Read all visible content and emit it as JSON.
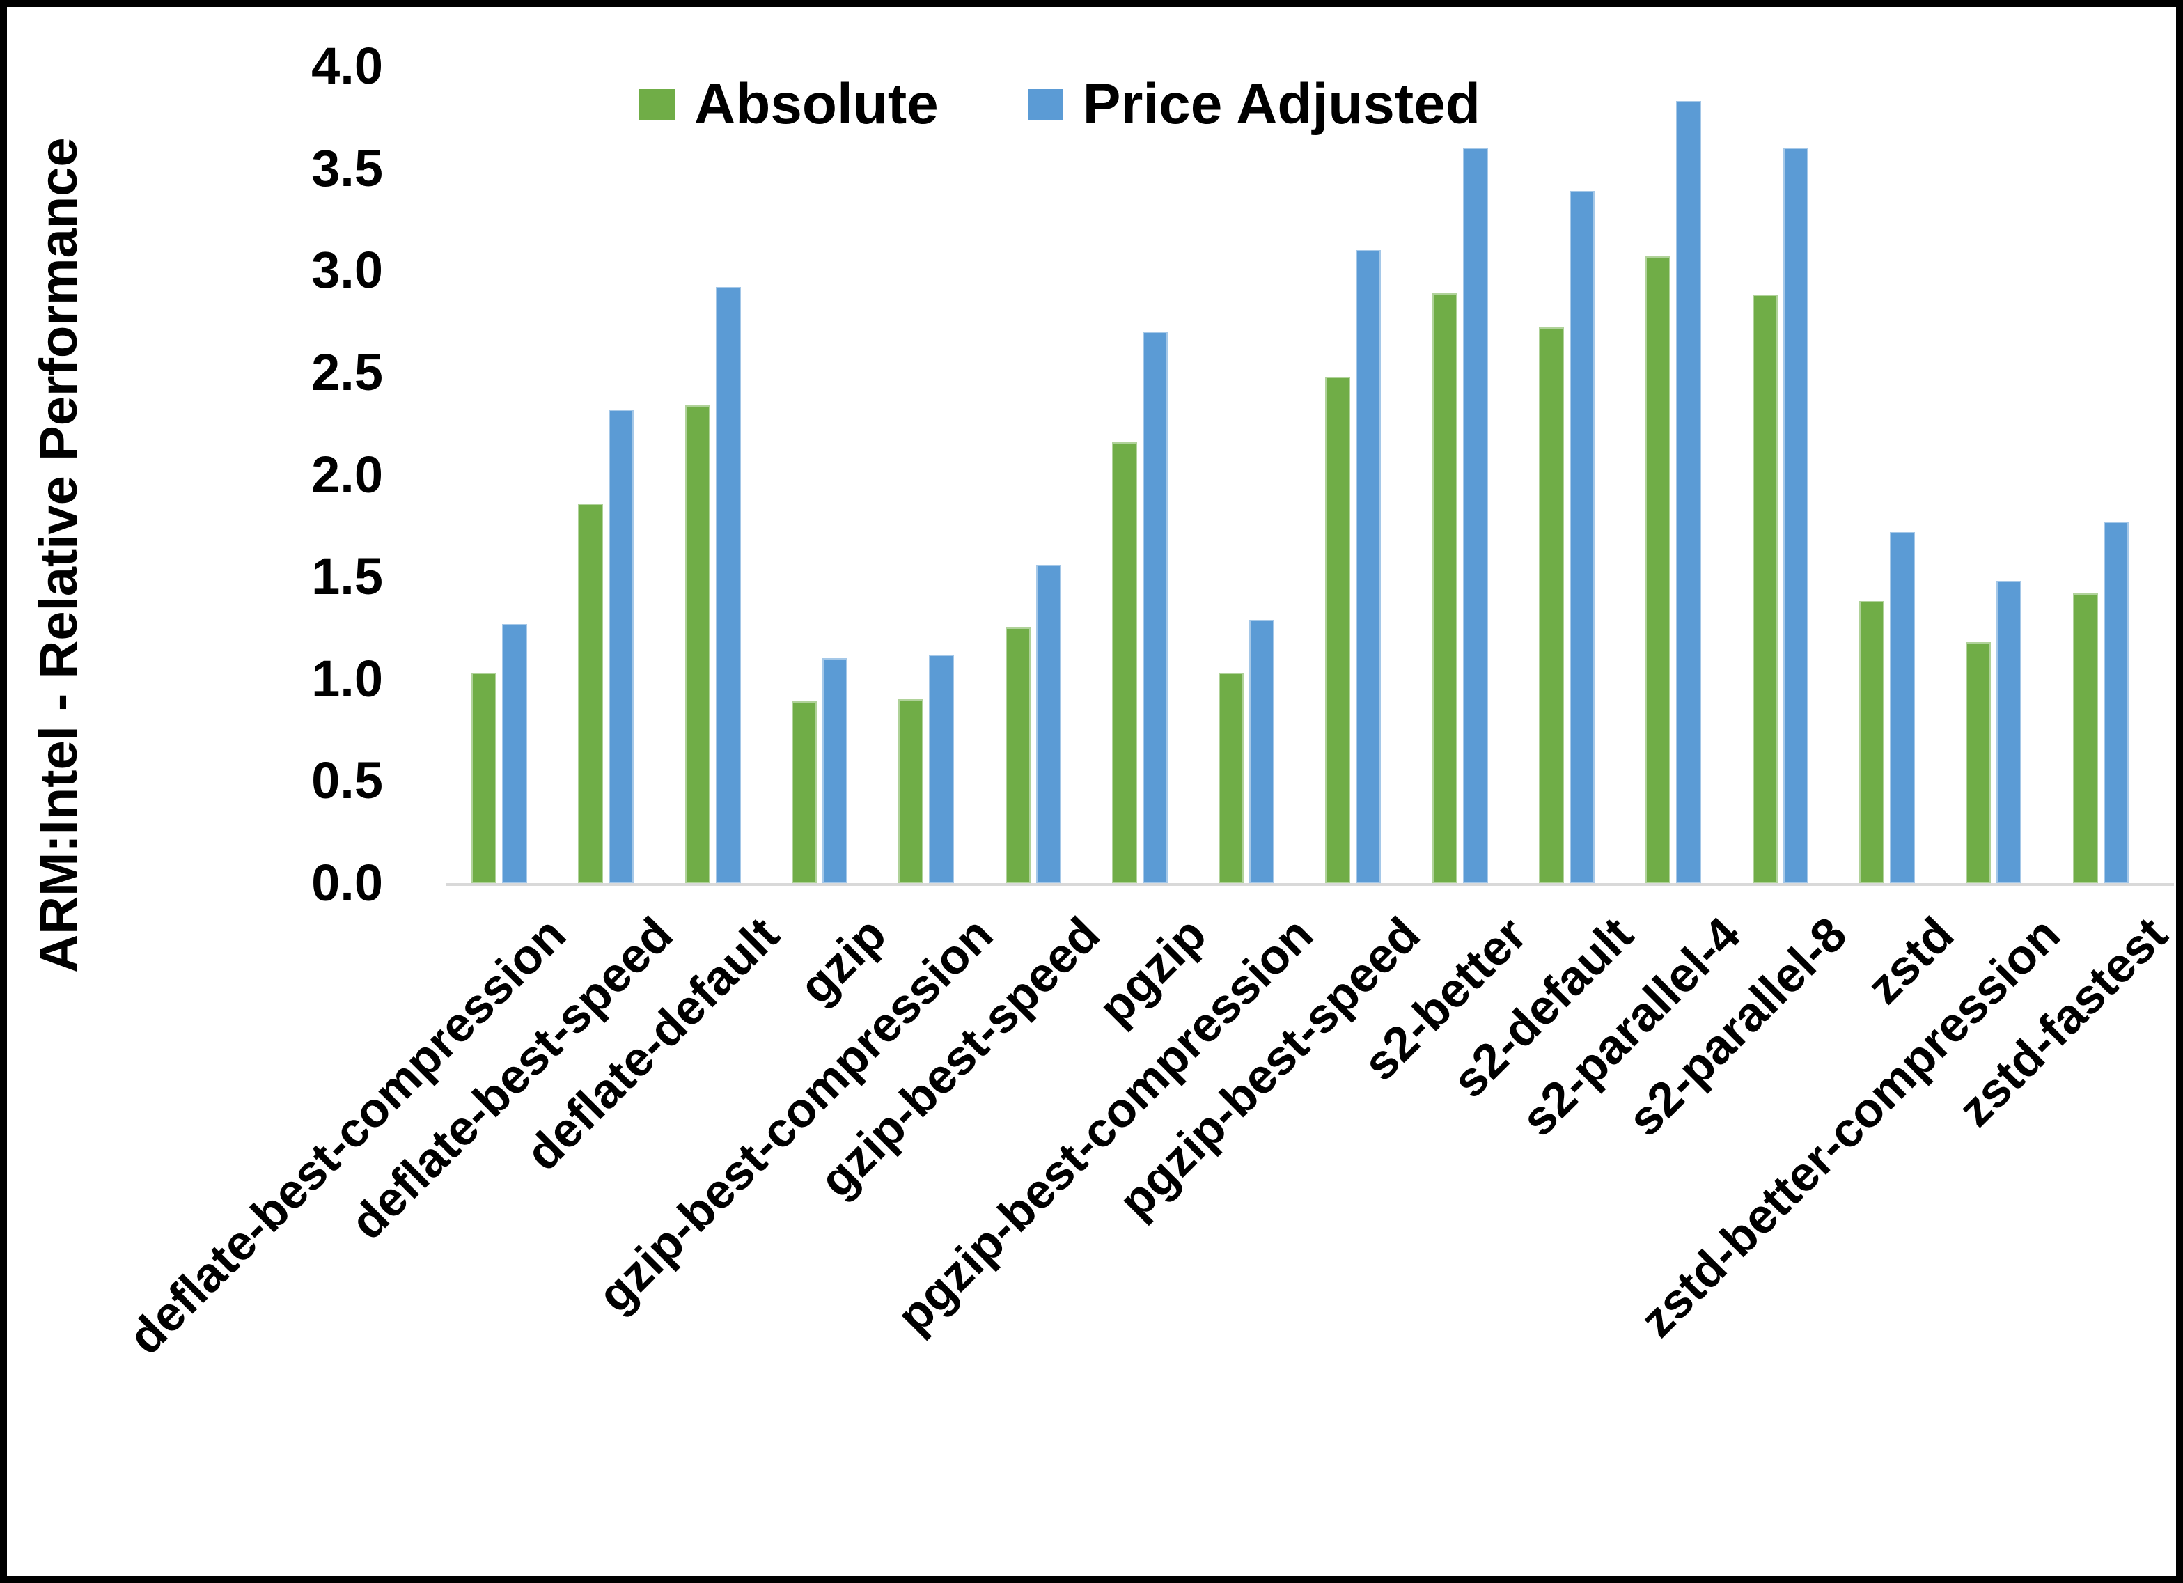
{
  "figure": {
    "background": "#ffffff",
    "frame_color": "#000000",
    "axis_line_color": "#d9d9d9"
  },
  "y_axis": {
    "title": "ARM:Intel - Relative Performance",
    "min": 0.0,
    "max": 4.0,
    "tick_step": 0.5,
    "tick_decimals": 1
  },
  "legend": [
    {
      "label": "Absolute",
      "color": "#70AD47"
    },
    {
      "label": "Price Adjusted",
      "color": "#5B9BD5"
    }
  ],
  "chart_data": {
    "type": "bar",
    "title": "",
    "xlabel": "",
    "ylabel": "ARM:Intel - Relative Performance",
    "ylim": [
      0.0,
      4.0
    ],
    "grid": false,
    "legend_position": "top",
    "categories": [
      "deflate-best-compression",
      "deflate-best-speed",
      "deflate-default",
      "gzip",
      "gzip-best-compression",
      "gzip-best-speed",
      "pgzip",
      "pgzip-best-compression",
      "pgzip-best-speed",
      "s2-better",
      "s2-default",
      "s2-parallel-4",
      "s2-parallel-8",
      "zstd",
      "zstd-better-compression",
      "zstd-fastest"
    ],
    "series": [
      {
        "name": "Absolute",
        "color": "#70AD47",
        "values": [
          1.03,
          1.86,
          2.34,
          0.89,
          0.9,
          1.25,
          2.16,
          1.03,
          2.48,
          2.89,
          2.72,
          3.07,
          2.88,
          1.38,
          1.18,
          1.42
        ]
      },
      {
        "name": "Price Adjusted",
        "color": "#5B9BD5",
        "values": [
          1.27,
          2.32,
          2.92,
          1.1,
          1.12,
          1.56,
          2.7,
          1.29,
          3.1,
          3.6,
          3.39,
          3.83,
          3.6,
          1.72,
          1.48,
          1.77
        ]
      }
    ]
  }
}
